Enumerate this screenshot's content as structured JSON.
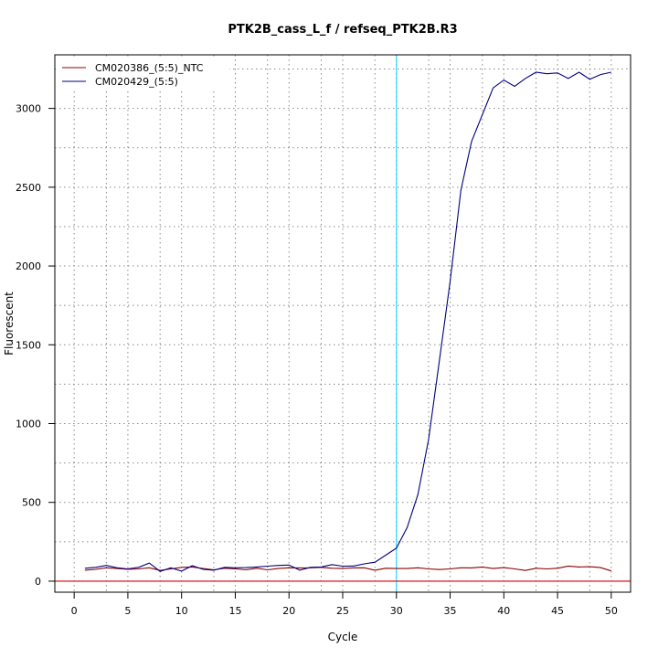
{
  "chart_data": {
    "type": "line",
    "title": "PTK2B_cass_L_f / refseq_PTK2B.R3",
    "xlabel": "Cycle",
    "ylabel": "Fluorescent",
    "xlim": [
      -1.8,
      51.8
    ],
    "ylim": [
      -70,
      3340
    ],
    "xticks": [
      0,
      5,
      10,
      15,
      20,
      25,
      30,
      35,
      40,
      45,
      50
    ],
    "yticks": [
      0,
      500,
      1000,
      1500,
      2000,
      2500,
      3000
    ],
    "x_gridlines": [
      0,
      3,
      5,
      8,
      10,
      13,
      15,
      18,
      20,
      23,
      25,
      28,
      30,
      33,
      35,
      38,
      40,
      43,
      45,
      48,
      50
    ],
    "y_gridlines": [
      0,
      250,
      500,
      750,
      1000,
      1250,
      1500,
      1750,
      2000,
      2250,
      2500,
      2750,
      3000,
      3250
    ],
    "grid": true,
    "legend_position": "top-left",
    "threshold": {
      "x": 30,
      "color": "#00d6ff"
    },
    "baseline": {
      "y": 0,
      "color": "#d40000"
    },
    "x": [
      1,
      2,
      3,
      4,
      5,
      6,
      7,
      8,
      9,
      10,
      11,
      12,
      13,
      14,
      15,
      16,
      17,
      18,
      19,
      20,
      21,
      22,
      23,
      24,
      25,
      26,
      27,
      28,
      29,
      30,
      31,
      32,
      33,
      34,
      35,
      36,
      37,
      38,
      39,
      40,
      41,
      42,
      43,
      44,
      45,
      46,
      47,
      48,
      49,
      50
    ],
    "series": [
      {
        "name": "CM020386_(5:5)_NTC",
        "color": "#8b0000",
        "values": [
          70,
          75,
          85,
          80,
          75,
          78,
          85,
          68,
          78,
          88,
          90,
          80,
          72,
          82,
          78,
          72,
          82,
          72,
          80,
          85,
          84,
          85,
          88,
          82,
          80,
          84,
          85,
          70,
          82,
          80,
          80,
          85,
          78,
          74,
          78,
          85,
          84,
          90,
          80,
          86,
          78,
          68,
          82,
          78,
          82,
          96,
          90,
          92,
          86,
          65
        ]
      },
      {
        "name": "CM020429_(5:5)",
        "color": "#00007f",
        "values": [
          82,
          88,
          100,
          85,
          78,
          88,
          115,
          62,
          85,
          64,
          98,
          75,
          70,
          88,
          85,
          86,
          90,
          95,
          100,
          102,
          70,
          88,
          90,
          105,
          95,
          96,
          110,
          120,
          165,
          210,
          340,
          550,
          900,
          1400,
          1900,
          2480,
          2790,
          2960,
          3130,
          3180,
          3140,
          3190,
          3230,
          3220,
          3225,
          3190,
          3230,
          3185,
          3215,
          3230
        ]
      }
    ]
  }
}
